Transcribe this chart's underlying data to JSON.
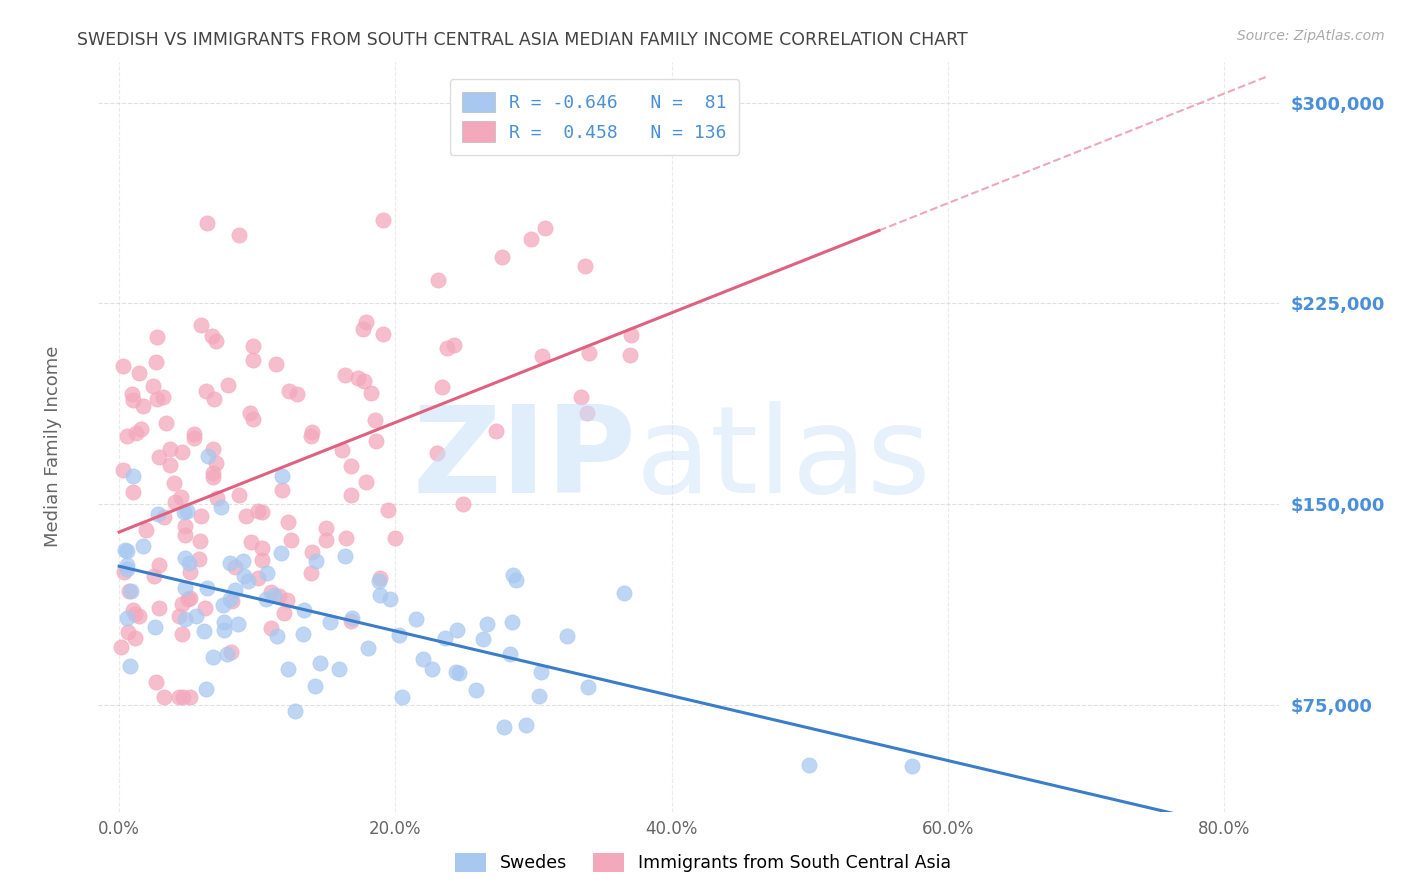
{
  "title": "SWEDISH VS IMMIGRANTS FROM SOUTH CENTRAL ASIA MEDIAN FAMILY INCOME CORRELATION CHART",
  "source": "Source: ZipAtlas.com",
  "ylabel": "Median Family Income",
  "xlabel_ticks": [
    "0.0%",
    "20.0%",
    "40.0%",
    "60.0%",
    "80.0%"
  ],
  "xlabel_vals": [
    0.0,
    0.2,
    0.4,
    0.6,
    0.8
  ],
  "ytick_vals": [
    75000,
    150000,
    225000,
    300000
  ],
  "ytick_labels": [
    "$75,000",
    "$150,000",
    "$225,000",
    "$300,000"
  ],
  "ylim": [
    35000,
    315000
  ],
  "xlim": [
    -0.015,
    0.84
  ],
  "blue_color": "#A8C8F0",
  "pink_color": "#F4A8BC",
  "blue_line_color": "#3A7DC9",
  "pink_line_color": "#E06080",
  "blue_R": -0.646,
  "blue_N": 81,
  "pink_R": 0.458,
  "pink_N": 136,
  "legend_label_blue": "Swedes",
  "legend_label_pink": "Immigrants from South Central Asia",
  "background_color": "#FFFFFF",
  "grid_color": "#CCCCCC",
  "title_color": "#444444",
  "tick_color": "#4A90D9",
  "watermark_zip_color": "#C8DFF5",
  "watermark_atlas_color": "#B8D0F0"
}
